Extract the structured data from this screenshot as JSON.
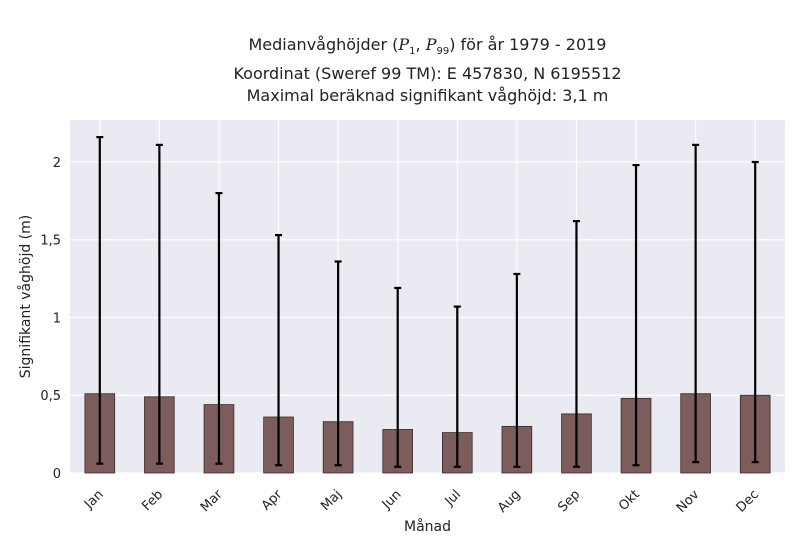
{
  "chart_data": {
    "type": "bar",
    "title_lines": [
      "Medianvåghöjder (P1, P99) för år 1979 - 2019",
      "Koordinat (Sweref 99 TM): E 457830, N 6195512",
      "Maximal beräknad signifikant våghöjd: 3,1 m"
    ],
    "title_parts": {
      "prefix": "Medianvåghöjder (",
      "p_letter": "P",
      "p1_sub": "1",
      "sep": ", ",
      "p99_sub": "99",
      "suffix": ") för år 1979 - 2019"
    },
    "xlabel": "Månad",
    "ylabel": "Signifikant våghöjd (m)",
    "categories": [
      "Jan",
      "Feb",
      "Mar",
      "Apr",
      "Maj",
      "Jun",
      "Jul",
      "Aug",
      "Sep",
      "Okt",
      "Nov",
      "Dec"
    ],
    "series": [
      {
        "values": [
          0.51,
          0.49,
          0.44,
          0.36,
          0.33,
          0.28,
          0.26,
          0.3,
          0.38,
          0.48,
          0.51,
          0.5
        ],
        "err_low": [
          0.06,
          0.06,
          0.06,
          0.05,
          0.05,
          0.04,
          0.04,
          0.04,
          0.04,
          0.05,
          0.07,
          0.07
        ],
        "err_high": [
          2.16,
          2.11,
          1.8,
          1.53,
          1.36,
          1.19,
          1.07,
          1.28,
          1.62,
          1.98,
          2.11,
          2.0
        ]
      }
    ],
    "ylim": [
      0,
      2.27
    ],
    "yticks": [
      0,
      0.5,
      1,
      1.5,
      2
    ],
    "ytick_labels": [
      "0",
      "0,5",
      "1",
      "1,5",
      "2"
    ],
    "grid": true,
    "colors": {
      "bar": "#7d5c5c",
      "bar_edge": "#3a2a2a",
      "errorbar": "#000000",
      "plot_bg": "#eaeaf2",
      "grid": "#ffffff"
    }
  }
}
